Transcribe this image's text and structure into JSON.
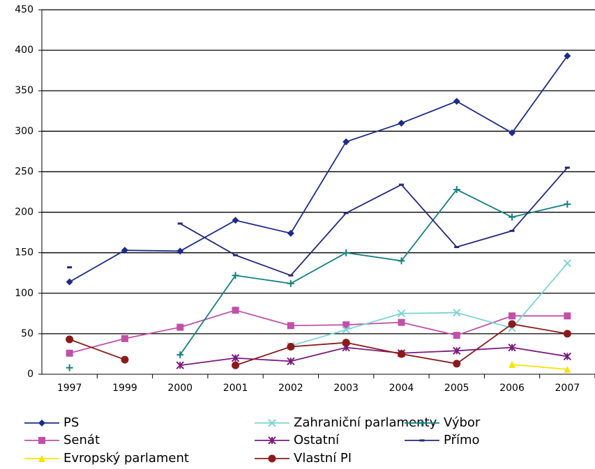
{
  "chart_data": {
    "type": "line",
    "categories": [
      "1997",
      "1999",
      "2000",
      "2001",
      "2002",
      "2003",
      "2004",
      "2005",
      "2006",
      "2007"
    ],
    "ylim": [
      0,
      450
    ],
    "yticks": [
      0,
      50,
      100,
      150,
      200,
      250,
      300,
      350,
      400,
      450
    ],
    "grid": true,
    "series": [
      {
        "name": "PS",
        "color": "#1c2b8a",
        "marker": "diamond",
        "values": [
          114,
          153,
          152,
          190,
          174,
          287,
          310,
          337,
          298,
          393
        ]
      },
      {
        "name": "Senát",
        "color": "#c050a8",
        "marker": "square",
        "values": [
          26,
          44,
          58,
          79,
          60,
          61,
          64,
          48,
          72,
          72
        ]
      },
      {
        "name": "Evropský parlament",
        "color": "#f5e400",
        "marker": "triangle",
        "values": [
          null,
          null,
          null,
          null,
          null,
          null,
          null,
          null,
          12,
          6
        ]
      },
      {
        "name": "Zahraniční parlamenty",
        "color": "#7fd4d4",
        "marker": "x",
        "values": [
          null,
          null,
          null,
          null,
          35,
          55,
          75,
          76,
          57,
          137
        ]
      },
      {
        "name": "Ostatní",
        "color": "#7a1a80",
        "marker": "asterisk",
        "values": [
          null,
          null,
          11,
          20,
          16,
          33,
          26,
          29,
          33,
          22
        ]
      },
      {
        "name": "Vlastní PI",
        "color": "#8b1a1a",
        "marker": "circle",
        "values": [
          43,
          18,
          null,
          11,
          34,
          39,
          25,
          13,
          62,
          50
        ]
      },
      {
        "name": "Výbor",
        "color": "#138080",
        "marker": "plus",
        "values": [
          8,
          null,
          24,
          122,
          112,
          150,
          140,
          228,
          194,
          210
        ]
      },
      {
        "name": "Přímo",
        "color": "#25287a",
        "marker": "dash",
        "values": [
          132,
          null,
          186,
          147,
          122,
          199,
          234,
          157,
          177,
          255
        ]
      }
    ]
  }
}
